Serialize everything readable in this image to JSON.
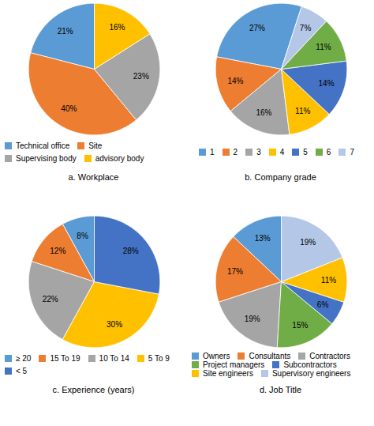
{
  "chart_data": [
    {
      "type": "pie",
      "title": "a. Workplace",
      "categories": [
        "Technical office",
        "Site",
        "Supervising body",
        "advisory body"
      ],
      "values": [
        21,
        40,
        23,
        16
      ],
      "value_labels": [
        "21%",
        "40%",
        "23%",
        "16%"
      ],
      "colors": [
        "#5B9BD5",
        "#ED7D31",
        "#A5A5A5",
        "#FFC000"
      ],
      "data_labels": true,
      "legend": "bottom"
    },
    {
      "type": "pie",
      "title": "b. Company grade",
      "categories": [
        "1",
        "2",
        "3",
        "4",
        "5",
        "6",
        "7"
      ],
      "values": [
        27,
        14,
        16,
        11,
        14,
        11,
        7
      ],
      "value_labels": [
        "27%",
        "14%",
        "16%",
        "11%",
        "14%",
        "11%",
        "7%"
      ],
      "colors": [
        "#5B9BD5",
        "#ED7D31",
        "#A5A5A5",
        "#FFC000",
        "#4472C4",
        "#70AD47",
        "#B4C7E7"
      ],
      "data_labels": true,
      "legend": "bottom"
    },
    {
      "type": "pie",
      "title": "c. Experience (years)",
      "categories": [
        "≥ 20",
        "15 To 19",
        "10 To 14",
        "5 To 9",
        "< 5"
      ],
      "values": [
        8,
        12,
        22,
        30,
        28
      ],
      "value_labels": [
        "8%",
        "12%",
        "22%",
        "30%",
        "28%"
      ],
      "colors": [
        "#5B9BD5",
        "#ED7D31",
        "#A5A5A5",
        "#FFC000",
        "#4472C4"
      ],
      "data_labels": true,
      "legend": "bottom"
    },
    {
      "type": "pie",
      "title": "d. Job Title",
      "categories": [
        "Owners",
        "Consultants",
        "Contractors",
        "Project managers",
        "Subcontractors",
        "Site engineers",
        "Supervisory engineers"
      ],
      "values": [
        13,
        17,
        19,
        15,
        6,
        11,
        19
      ],
      "value_labels": [
        "13%",
        "17%",
        "19%",
        "15%",
        "6%",
        "11%",
        "19%"
      ],
      "colors": [
        "#5B9BD5",
        "#ED7D31",
        "#A5A5A5",
        "#70AD47",
        "#4472C4",
        "#FFC000",
        "#B4C7E7"
      ],
      "data_labels": true,
      "legend": "bottom"
    }
  ]
}
